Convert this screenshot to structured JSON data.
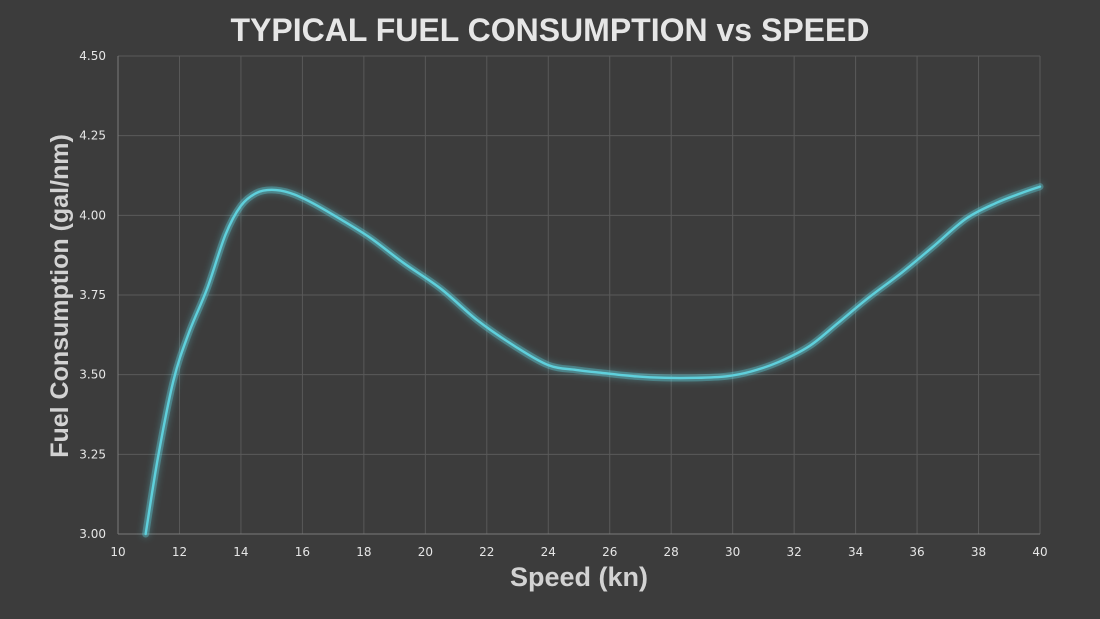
{
  "chart_data": {
    "type": "line",
    "title": "TYPICAL FUEL CONSUMPTION vs SPEED",
    "xlabel": "Speed (kn)",
    "ylabel": "Fuel Consumption (gal/nm)",
    "xlim": [
      10,
      40
    ],
    "ylim": [
      3.0,
      4.5
    ],
    "x_ticks": [
      "10",
      "12",
      "14",
      "16",
      "18",
      "20",
      "22",
      "24",
      "26",
      "28",
      "30",
      "32",
      "34",
      "36",
      "38",
      "40"
    ],
    "y_ticks": [
      "3.00",
      "3.25",
      "3.50",
      "3.75",
      "4.00",
      "4.25",
      "4.50"
    ],
    "grid": true,
    "legend": "none",
    "series": [
      {
        "color": "#5fd0dc",
        "x": [
          10.9,
          11.3,
          11.8,
          12.3,
          12.9,
          13.5,
          14.0,
          14.5,
          15.0,
          15.6,
          16.3,
          17.2,
          18.2,
          19.3,
          20.5,
          21.7,
          22.9,
          24.0,
          24.9,
          25.8,
          26.8,
          27.8,
          28.8,
          29.8,
          30.6,
          31.5,
          32.5,
          33.4,
          34.4,
          35.5,
          36.5,
          37.6,
          38.6,
          39.4,
          40.0
        ],
        "y": [
          3.0,
          3.24,
          3.48,
          3.63,
          3.77,
          3.94,
          4.03,
          4.07,
          4.08,
          4.07,
          4.04,
          3.99,
          3.93,
          3.85,
          3.77,
          3.67,
          3.59,
          3.53,
          3.515,
          3.505,
          3.495,
          3.49,
          3.49,
          3.495,
          3.51,
          3.54,
          3.59,
          3.66,
          3.74,
          3.82,
          3.9,
          3.99,
          4.04,
          4.07,
          4.09
        ]
      }
    ]
  }
}
